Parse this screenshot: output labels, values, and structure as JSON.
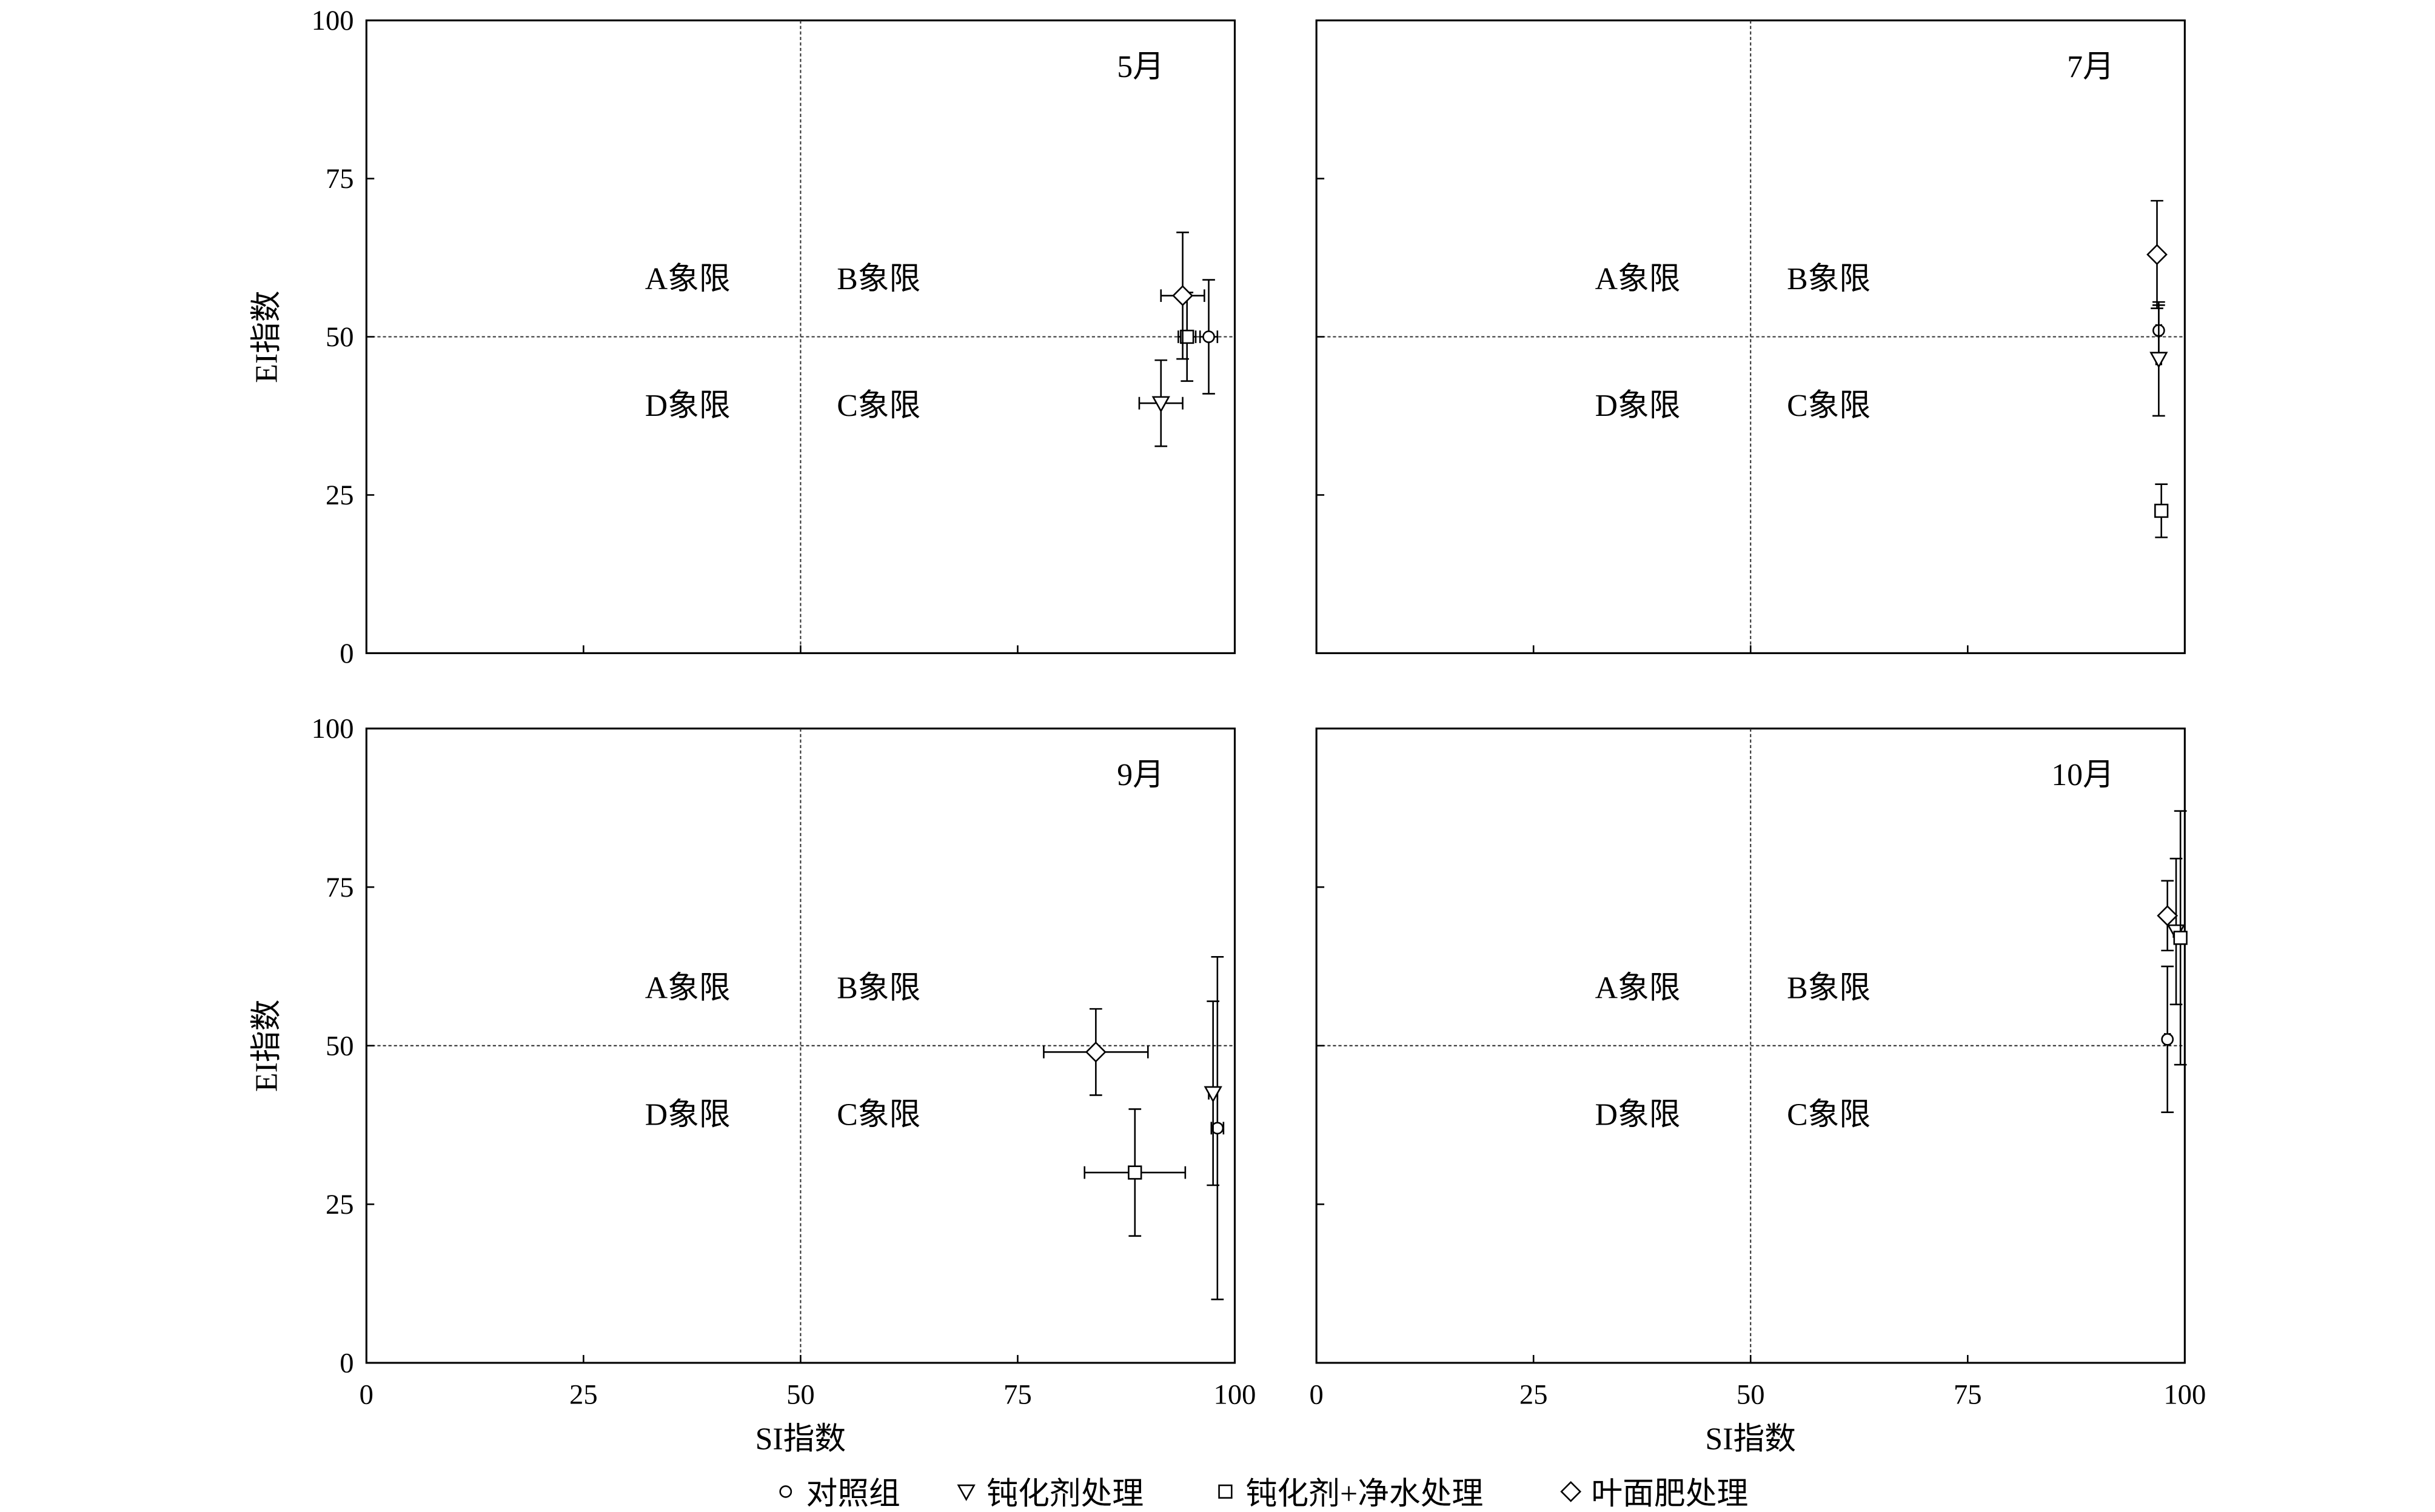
{
  "legend": {
    "items": [
      {
        "marker": "circle",
        "label": "对照组"
      },
      {
        "marker": "triangle-down",
        "label": "钝化剂处理"
      },
      {
        "marker": "square",
        "label": "钝化剂+净水处理"
      },
      {
        "marker": "diamond",
        "label": "叶面肥处理"
      }
    ]
  },
  "chart_data": [
    {
      "type": "scatter",
      "panel_label": "5月",
      "xlabel": "",
      "ylabel": "EI指数",
      "xlim": [
        0,
        100
      ],
      "ylim": [
        0,
        100
      ],
      "xticks": [],
      "yticks": [
        "0",
        "25",
        "50",
        "75",
        "100"
      ],
      "reference_lines": {
        "x": 50,
        "y": 50
      },
      "quadrant_labels": {
        "A": "A象限",
        "B": "B象限",
        "C": "C象限",
        "D": "D象限"
      },
      "series": [
        {
          "marker": "circle",
          "x": 97,
          "y": 50,
          "xerr": 1,
          "yerr": 9
        },
        {
          "marker": "triangle-down",
          "x": 91.5,
          "y": 39.5,
          "xerr": 2.5,
          "yerr": 6.8
        },
        {
          "marker": "square",
          "x": 94.5,
          "y": 50,
          "xerr": 1,
          "yerr": 7
        },
        {
          "marker": "diamond",
          "x": 94,
          "y": 56.5,
          "xerr": 2.5,
          "yerr": 10
        }
      ]
    },
    {
      "type": "scatter",
      "panel_label": "7月",
      "xlabel": "",
      "ylabel": "",
      "xlim": [
        0,
        100
      ],
      "ylim": [
        0,
        100
      ],
      "xticks": [],
      "yticks": [],
      "reference_lines": {
        "x": 50,
        "y": 50
      },
      "quadrant_labels": {
        "A": "A象限",
        "B": "B象限",
        "C": "C象限",
        "D": "D象限"
      },
      "series": [
        {
          "marker": "circle",
          "x": 97,
          "y": 51,
          "xerr": 0.3,
          "yerr": 4
        },
        {
          "marker": "triangle-down",
          "x": 97,
          "y": 46.5,
          "xerr": 0.3,
          "yerr": 9
        },
        {
          "marker": "square",
          "x": 97.3,
          "y": 22.5,
          "xerr": 0.5,
          "yerr": 4.2
        },
        {
          "marker": "diamond",
          "x": 96.8,
          "y": 63,
          "xerr": 0.3,
          "yerr": 8.5
        }
      ]
    },
    {
      "type": "scatter",
      "panel_label": "9月",
      "xlabel": "SI指数",
      "ylabel": "EI指数",
      "xlim": [
        0,
        100
      ],
      "ylim": [
        0,
        100
      ],
      "xticks": [
        "0",
        "25",
        "50",
        "75",
        "100"
      ],
      "yticks": [
        "0",
        "25",
        "50",
        "75",
        "100"
      ],
      "reference_lines": {
        "x": 50,
        "y": 50
      },
      "quadrant_labels": {
        "A": "A象限",
        "B": "B象限",
        "C": "C象限",
        "D": "D象限"
      },
      "series": [
        {
          "marker": "circle",
          "x": 98,
          "y": 37,
          "xerr": 0.7,
          "yerr": 27
        },
        {
          "marker": "triangle-down",
          "x": 97.5,
          "y": 42.5,
          "xerr": 0.5,
          "yerr": 14.5
        },
        {
          "marker": "square",
          "x": 88.5,
          "y": 30,
          "xerr": 5.8,
          "yerr": 10
        },
        {
          "marker": "diamond",
          "x": 84,
          "y": 49,
          "xerr": 6,
          "yerr": 6.8
        }
      ]
    },
    {
      "type": "scatter",
      "panel_label": "10月",
      "xlabel": "SI指数",
      "ylabel": "",
      "xlim": [
        0,
        100
      ],
      "ylim": [
        0,
        100
      ],
      "xticks": [
        "0",
        "25",
        "50",
        "75",
        "100"
      ],
      "yticks": [],
      "reference_lines": {
        "x": 50,
        "y": 50
      },
      "quadrant_labels": {
        "A": "A象限",
        "B": "B象限",
        "C": "C象限",
        "D": "D象限"
      },
      "series": [
        {
          "marker": "circle",
          "x": 98,
          "y": 51,
          "xerr": 0.3,
          "yerr": 11.5
        },
        {
          "marker": "triangle-down",
          "x": 99,
          "y": 68,
          "xerr": 0.3,
          "yerr": 11.5
        },
        {
          "marker": "square",
          "x": 99.5,
          "y": 67,
          "xerr": 0.3,
          "yerr": 20
        },
        {
          "marker": "diamond",
          "x": 98,
          "y": 70.5,
          "xerr": 0.3,
          "yerr": 5.5
        }
      ]
    }
  ]
}
